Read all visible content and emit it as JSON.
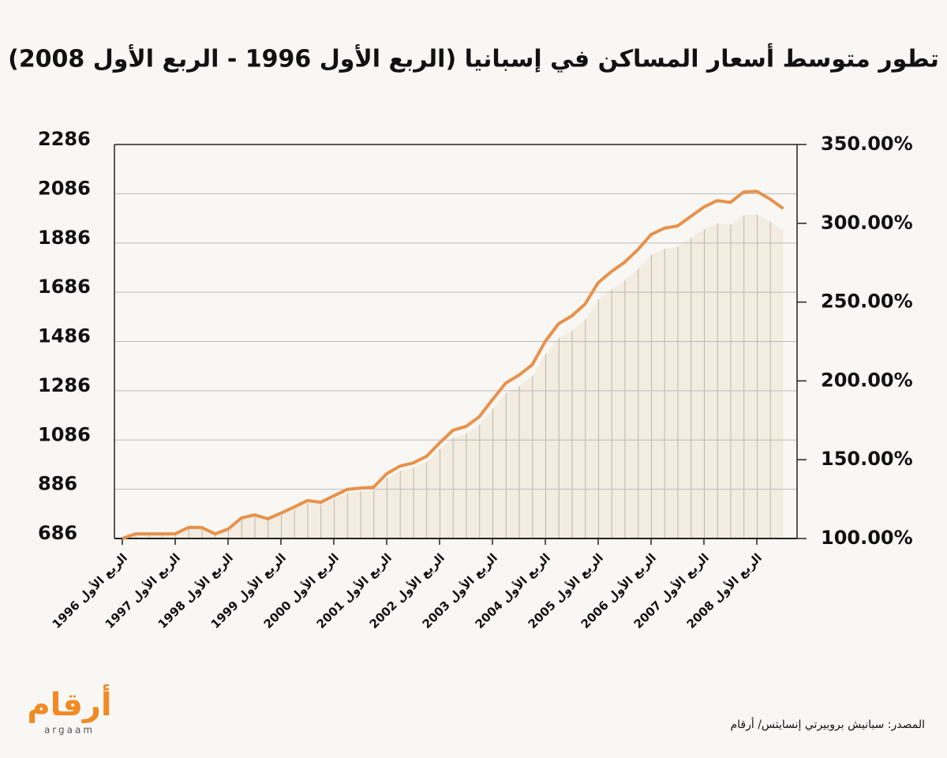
{
  "chart_data": {
    "type": "line",
    "title": "تطور متوسط أسعار المساكن في إسبانيا (الربع الأول 1996 - الربع الأول 2008)",
    "categories": [
      "الربع الأول 1996",
      null,
      null,
      null,
      "الربع الأول 1997",
      null,
      null,
      null,
      "الربع الأول 1998",
      null,
      null,
      null,
      "الربع الأول 1999",
      null,
      null,
      null,
      "الربع الأول 2000",
      null,
      null,
      null,
      "الربع الأول 2001",
      null,
      null,
      null,
      "الربع الأول 2002",
      null,
      null,
      null,
      "الربع الأول 2003",
      null,
      null,
      null,
      "الربع الأول 2004",
      null,
      null,
      null,
      "الربع الأول 2005",
      null,
      null,
      null,
      "الربع الأول 2006",
      null,
      null,
      null,
      "الربع الأول 2007",
      null,
      null,
      null,
      "الربع الأول 2008",
      null,
      null
    ],
    "series": [
      {
        "color": "#e8914a",
        "values": [
          686,
          705,
          705,
          705,
          705,
          731,
          731,
          705,
          724,
          769,
          782,
          766,
          789,
          814,
          840,
          833,
          859,
          885,
          891,
          894,
          949,
          980,
          993,
          1019,
          1074,
          1125,
          1141,
          1180,
          1250,
          1317,
          1349,
          1391,
          1487,
          1558,
          1590,
          1638,
          1725,
          1770,
          1808,
          1859,
          1920,
          1946,
          1955,
          1994,
          2032,
          2058,
          2051,
          2093,
          2096,
          2064,
          2026
        ]
      },
      {
        "color": "#efe6d4",
        "axis": "y2",
        "values": [
          100.0,
          102.8,
          102.8,
          102.8,
          102.8,
          106.6,
          106.6,
          102.8,
          105.5,
          112.1,
          114.0,
          111.7,
          115.0,
          118.7,
          122.4,
          121.4,
          125.2,
          129.0,
          129.9,
          130.3,
          138.3,
          142.9,
          144.8,
          148.5,
          156.6,
          164.0,
          166.3,
          172.0,
          182.2,
          192.0,
          196.6,
          202.8,
          216.8,
          227.1,
          231.8,
          238.8,
          251.5,
          258.0,
          263.6,
          271.0,
          279.9,
          283.7,
          285.0,
          290.7,
          296.2,
          300.0,
          299.0,
          305.1,
          305.5,
          300.9,
          295.3
        ]
      }
    ],
    "ylim": [
      686,
      2286
    ],
    "yticks": [
      686,
      886,
      1086,
      1286,
      1486,
      1686,
      1886,
      2086,
      2286
    ],
    "y2lim": [
      100,
      350
    ],
    "y2ticks": [
      {
        "value": 100,
        "label": "100.00%"
      },
      {
        "value": 150,
        "label": "150.00%"
      },
      {
        "value": 200,
        "label": "200.00%"
      },
      {
        "value": 250,
        "label": "250.00%"
      },
      {
        "value": 300,
        "label": "300.00%"
      },
      {
        "value": 350,
        "label": "350.00%"
      }
    ],
    "grid": true,
    "source": "المصدر: سبانيش بروبيرتي إنسايتس/ أرقام",
    "logo": {
      "arabic": "أرقام",
      "latin": "argaam"
    }
  }
}
